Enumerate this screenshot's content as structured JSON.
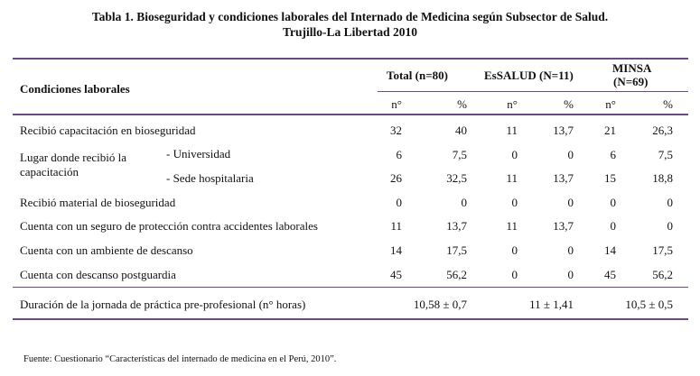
{
  "title": {
    "line1": "Tabla 1. Bioseguridad y condiciones laborales del Internado de Medicina según Subsector de Salud.",
    "line2": "Trujillo-La Libertad 2010"
  },
  "header": {
    "row_label": "Condiciones laborales",
    "groups": [
      "Total (n=80)",
      "EsSALUD (N=11)",
      "MINSA",
      "(N=69)"
    ],
    "sub": [
      "n°",
      "%",
      "n°",
      "%",
      "n°",
      "%"
    ]
  },
  "rows": [
    {
      "label": "Recibió capacitación en bioseguridad",
      "v": [
        "32",
        "40",
        "11",
        "13,7",
        "21",
        "26,3"
      ]
    },
    {
      "label": "Lugar donde recibió la",
      "label2": "capacitación",
      "sub": "- Universidad",
      "v": [
        "6",
        "7,5",
        "0",
        "0",
        "6",
        "7,5"
      ]
    },
    {
      "sub": "- Sede hospitalaria",
      "v": [
        "26",
        "32,5",
        "11",
        "13,7",
        "15",
        "18,8"
      ]
    },
    {
      "label": "Recibió material de bioseguridad",
      "v": [
        "0",
        "0",
        "0",
        "0",
        "0",
        "0"
      ]
    },
    {
      "label": "Cuenta con un seguro de protección contra accidentes laborales",
      "v": [
        "11",
        "13,7",
        "11",
        "13,7",
        "0",
        "0"
      ]
    },
    {
      "label": "Cuenta con un ambiente de descanso",
      "v": [
        "14",
        "17,5",
        "0",
        "0",
        "14",
        "17,5"
      ]
    },
    {
      "label": "Cuenta con descanso postguardia",
      "v": [
        "45",
        "56,2",
        "0",
        "0",
        "45",
        "56,2"
      ]
    }
  ],
  "duration": {
    "label": "Duración de la jornada de práctica pre-profesional (n° horas)",
    "values": [
      "10,58 ± 0,7",
      "11 ± 1,41",
      "10,5 ± 0,5"
    ]
  },
  "source": "Fuente: Cuestionario “Características del internado de medicina en el Perú, 2010”."
}
